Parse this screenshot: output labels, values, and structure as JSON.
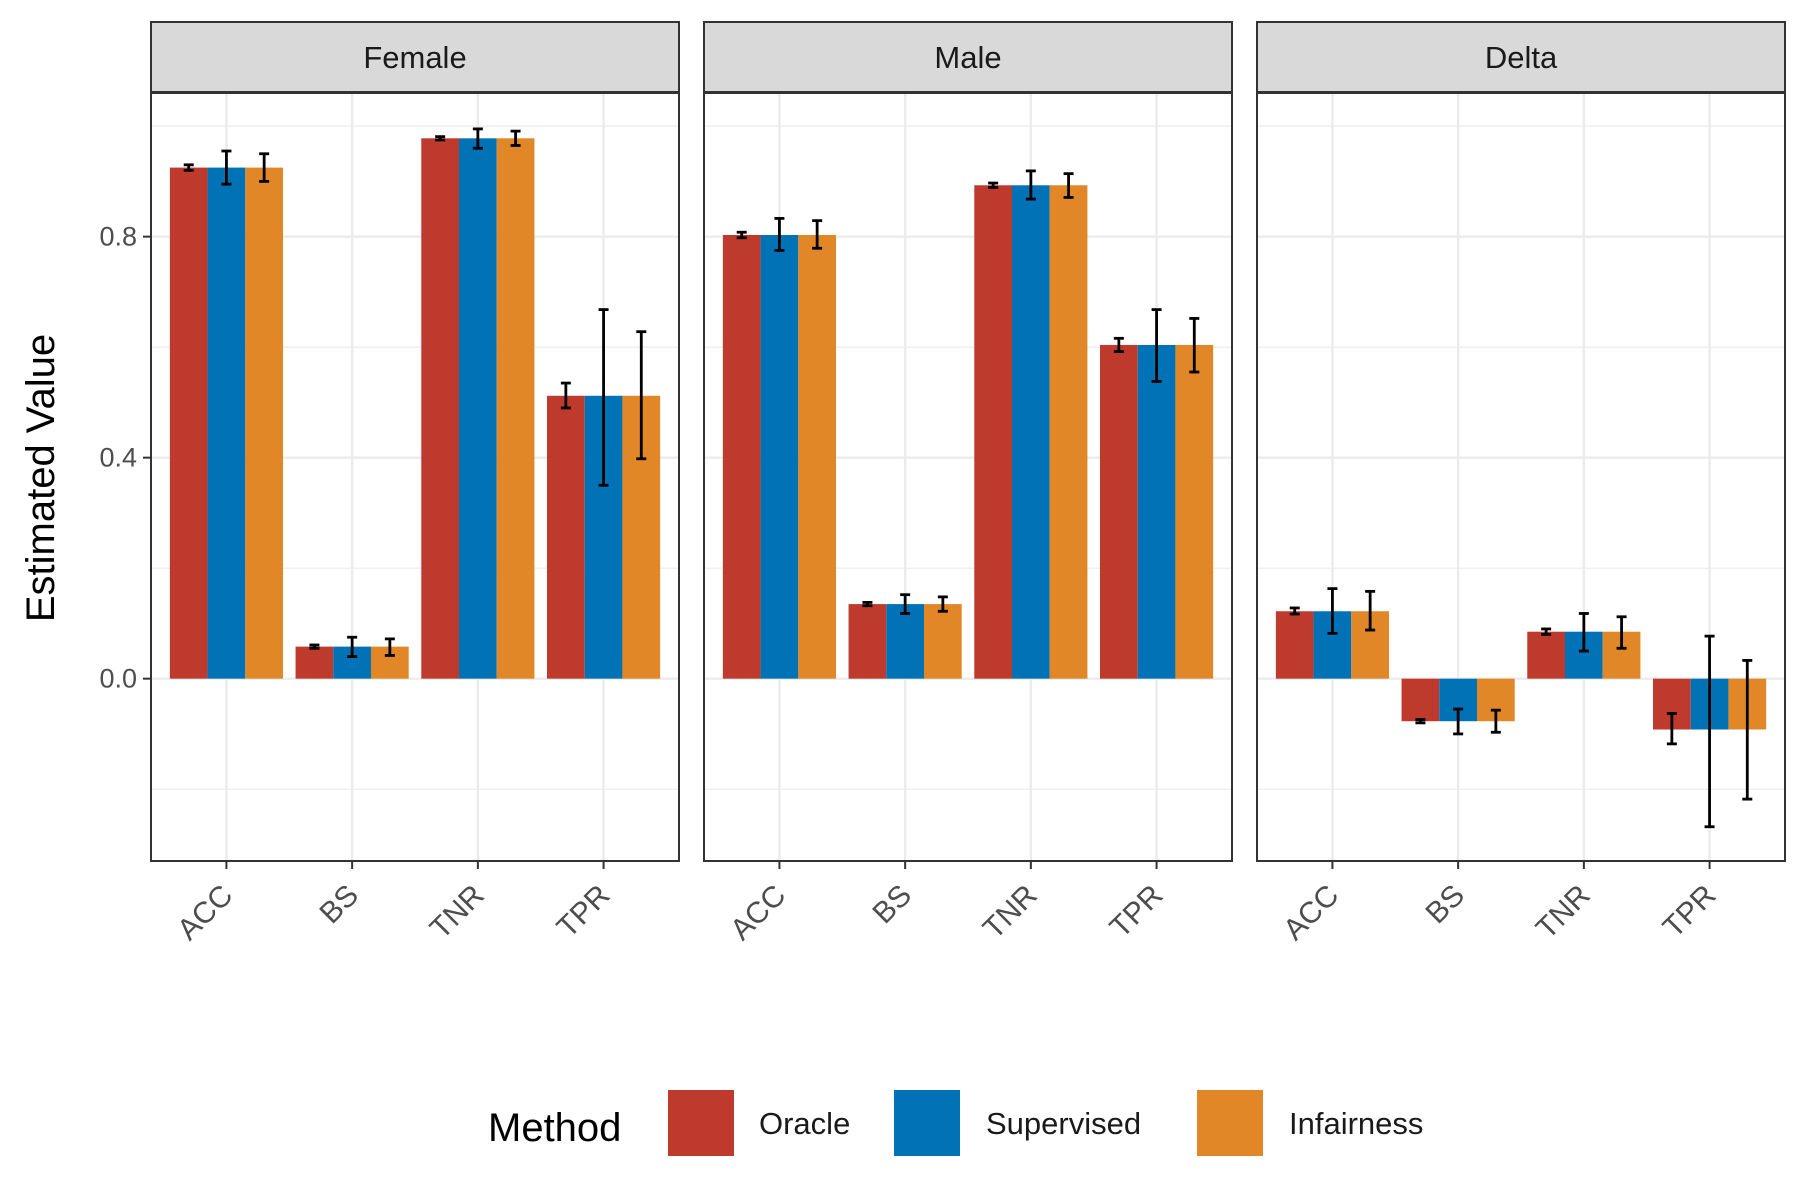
{
  "chart_data": {
    "type": "bar",
    "ylabel": "Estimated Value",
    "ylim": [
      -0.33,
      1.06
    ],
    "yticks": [
      0.0,
      0.4,
      0.8
    ],
    "ytick_labels": [
      "0.0",
      "0.4",
      "0.8"
    ],
    "grid": true,
    "legend": {
      "title": "Method",
      "position": "bottom"
    },
    "categories": [
      "ACC",
      "BS",
      "TNR",
      "TPR"
    ],
    "series_names": [
      "Oracle",
      "Supervised",
      "Infairness"
    ],
    "colors": {
      "Oracle": "#BE3A2C",
      "Supervised": "#0072B5",
      "Infairness": "#E18727"
    },
    "facets": [
      {
        "label": "Female",
        "series": [
          {
            "name": "Oracle",
            "values": [
              0.925,
              0.058,
              0.978,
              0.512
            ],
            "lower": [
              0.92,
              0.055,
              0.975,
              0.49
            ],
            "upper": [
              0.93,
              0.061,
              0.981,
              0.535
            ]
          },
          {
            "name": "Supervised",
            "values": [
              0.925,
              0.058,
              0.978,
              0.512
            ],
            "lower": [
              0.895,
              0.04,
              0.96,
              0.35
            ],
            "upper": [
              0.955,
              0.075,
              0.995,
              0.668
            ]
          },
          {
            "name": "Infairness",
            "values": [
              0.925,
              0.058,
              0.978,
              0.512
            ],
            "lower": [
              0.9,
              0.042,
              0.965,
              0.398
            ],
            "upper": [
              0.95,
              0.072,
              0.991,
              0.628
            ]
          }
        ]
      },
      {
        "label": "Male",
        "series": [
          {
            "name": "Oracle",
            "values": [
              0.803,
              0.135,
              0.893,
              0.604
            ],
            "lower": [
              0.798,
              0.132,
              0.889,
              0.592
            ],
            "upper": [
              0.808,
              0.138,
              0.897,
              0.616
            ]
          },
          {
            "name": "Supervised",
            "values": [
              0.803,
              0.135,
              0.893,
              0.604
            ],
            "lower": [
              0.775,
              0.118,
              0.868,
              0.538
            ],
            "upper": [
              0.833,
              0.152,
              0.919,
              0.668
            ]
          },
          {
            "name": "Infairness",
            "values": [
              0.803,
              0.135,
              0.893,
              0.604
            ],
            "lower": [
              0.779,
              0.122,
              0.871,
              0.555
            ],
            "upper": [
              0.829,
              0.148,
              0.914,
              0.652
            ]
          }
        ]
      },
      {
        "label": "Delta",
        "series": [
          {
            "name": "Oracle",
            "values": [
              0.122,
              -0.077,
              0.085,
              -0.092
            ],
            "lower": [
              0.117,
              -0.08,
              0.08,
              -0.118
            ],
            "upper": [
              0.128,
              -0.074,
              0.09,
              -0.063
            ]
          },
          {
            "name": "Supervised",
            "values": [
              0.122,
              -0.077,
              0.085,
              -0.092
            ],
            "lower": [
              0.082,
              -0.1,
              0.05,
              -0.268
            ],
            "upper": [
              0.163,
              -0.055,
              0.118,
              0.077
            ]
          },
          {
            "name": "Infairness",
            "values": [
              0.122,
              -0.077,
              0.085,
              -0.092
            ],
            "lower": [
              0.088,
              -0.097,
              0.055,
              -0.218
            ],
            "upper": [
              0.158,
              -0.057,
              0.112,
              0.033
            ]
          }
        ]
      }
    ]
  }
}
